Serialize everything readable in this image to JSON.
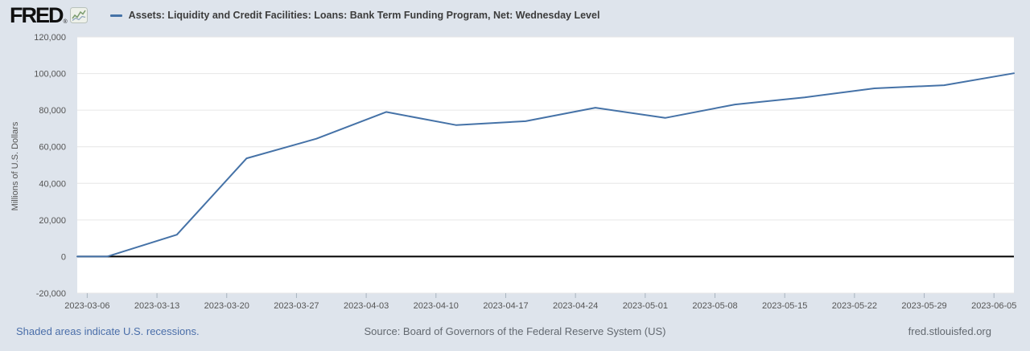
{
  "header": {
    "logo_text": "FRED",
    "logo_registered": "®",
    "legend": {
      "marker_color": "#4572a7",
      "label": "Assets: Liquidity and Credit Facilities: Loans: Bank Term Funding Program, Net: Wednesday Level"
    }
  },
  "footer": {
    "left_link": "Shaded areas indicate U.S. recessions.",
    "source": "Source: Board of Governors of the Federal Reserve System (US)",
    "site": "fred.stlouisfed.org"
  },
  "chart_data": {
    "type": "line",
    "title": "Assets: Liquidity and Credit Facilities: Loans: Bank Term Funding Program, Net: Wednesday Level",
    "xlabel": "",
    "ylabel": "Millions of U.S. Dollars",
    "ylim": [
      -20000,
      120000
    ],
    "yticks": [
      120000,
      100000,
      80000,
      60000,
      40000,
      20000,
      0,
      -20000
    ],
    "ytick_labels": [
      "120,000",
      "100,000",
      "80,000",
      "60,000",
      "40,000",
      "20,000",
      "0",
      "-20,000"
    ],
    "xtick_labels": [
      "2023-03-06",
      "2023-03-13",
      "2023-03-20",
      "2023-03-27",
      "2023-04-03",
      "2023-04-10",
      "2023-04-17",
      "2023-04-24",
      "2023-05-01",
      "2023-05-08",
      "2023-05-15",
      "2023-05-22",
      "2023-05-29",
      "2023-06-05"
    ],
    "x_range": [
      "2023-03-05",
      "2023-06-07"
    ],
    "grid": "horizontal-only",
    "grid_color": "#e6e6e6",
    "plot_background": "#ffffff",
    "page_background": "#dee4ec",
    "legend_position": "top-left",
    "line_color": "#4572a7",
    "zero_line_color": "#000000",
    "line_starts_at_left_edge_value": 0,
    "series": [
      {
        "name": "Assets: Liquidity and Credit Facilities: Loans: Bank Term Funding Program, Net: Wednesday Level",
        "frequency": "weekly-wednesday",
        "x": [
          "2023-03-08",
          "2023-03-15",
          "2023-03-22",
          "2023-03-29",
          "2023-04-05",
          "2023-04-12",
          "2023-04-19",
          "2023-04-26",
          "2023-05-03",
          "2023-05-10",
          "2023-05-17",
          "2023-05-24",
          "2023-05-31",
          "2023-06-07"
        ],
        "values": [
          0,
          11943,
          53669,
          64403,
          79021,
          71837,
          73982,
          81327,
          75778,
          83101,
          87006,
          91907,
          93615,
          100161
        ]
      }
    ]
  }
}
